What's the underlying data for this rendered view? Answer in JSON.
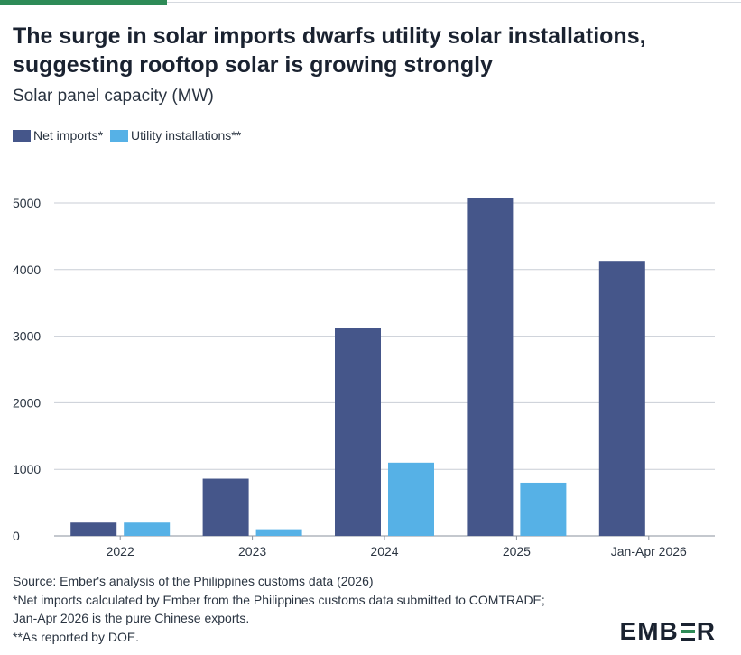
{
  "header": {
    "title": "The surge in solar imports dwarfs utility solar installations, suggesting rooftop solar is growing strongly",
    "subtitle": "Solar panel capacity (MW)"
  },
  "colors": {
    "net_imports": "#45568a",
    "utility_installations": "#56b1e6",
    "grid": "#c9ced6",
    "accent": "#2e8b57"
  },
  "legend": [
    {
      "label": "Net imports*",
      "color": "#45568a"
    },
    {
      "label": "Utility installations**",
      "color": "#56b1e6"
    }
  ],
  "chart_data": {
    "type": "bar",
    "title": "The surge in solar imports dwarfs utility solar installations, suggesting rooftop solar is growing strongly",
    "subtitle": "Solar panel capacity (MW)",
    "xlabel": "",
    "ylabel": "",
    "categories": [
      "2022",
      "2023",
      "2024",
      "2025",
      "Jan-Apr 2026"
    ],
    "series": [
      {
        "name": "Net imports*",
        "values": [
          200,
          860,
          3130,
          5070,
          4130
        ]
      },
      {
        "name": "Utility installations**",
        "values": [
          200,
          100,
          1100,
          800,
          null
        ]
      }
    ],
    "yticks": [
      0,
      1000,
      2000,
      3000,
      4000,
      5000
    ],
    "ylim": [
      0,
      5400
    ],
    "grid": true,
    "legend_position": "top-left"
  },
  "footer": {
    "source": "Source: Ember's analysis of the Philippines customs data (2026)",
    "note1_line1": "*Net imports calculated by Ember from the Philippines customs data submitted to COMTRADE;",
    "note1_line2": "Jan-Apr 2026 is the pure Chinese exports.",
    "note2": "**As reported by DOE."
  },
  "logo": {
    "left": "EMB",
    "right": "R"
  }
}
